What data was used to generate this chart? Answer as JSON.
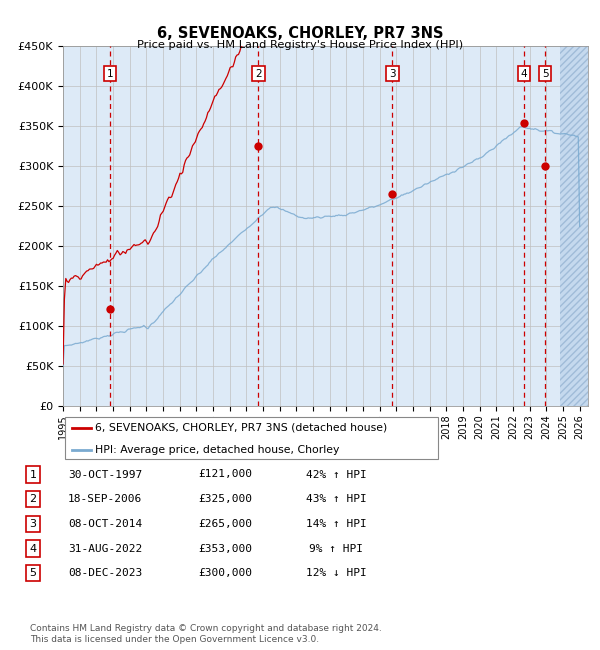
{
  "title": "6, SEVENOAKS, CHORLEY, PR7 3NS",
  "subtitle": "Price paid vs. HM Land Registry's House Price Index (HPI)",
  "ylim": [
    0,
    450000
  ],
  "xlim_start": 1995.0,
  "xlim_end": 2026.5,
  "bg_color": "#ddeaf7",
  "grid_color": "#aaaaaa",
  "red_line_color": "#cc0000",
  "blue_line_color": "#7aaad0",
  "sale_marker_color": "#cc0000",
  "dashed_line_color": "#cc0000",
  "sales": [
    {
      "label": "1",
      "date_num": 1997.83,
      "price": 121000
    },
    {
      "label": "2",
      "date_num": 2006.72,
      "price": 325000
    },
    {
      "label": "3",
      "date_num": 2014.77,
      "price": 265000
    },
    {
      "label": "4",
      "date_num": 2022.67,
      "price": 353000
    },
    {
      "label": "5",
      "date_num": 2023.93,
      "price": 300000
    }
  ],
  "legend_entries": [
    {
      "label": "6, SEVENOAKS, CHORLEY, PR7 3NS (detached house)",
      "color": "#cc0000"
    },
    {
      "label": "HPI: Average price, detached house, Chorley",
      "color": "#7aaad0"
    }
  ],
  "table_rows": [
    {
      "num": "1",
      "date": "30-OCT-1997",
      "price": "£121,000",
      "change": "42% ↑ HPI"
    },
    {
      "num": "2",
      "date": "18-SEP-2006",
      "price": "£325,000",
      "change": "43% ↑ HPI"
    },
    {
      "num": "3",
      "date": "08-OCT-2014",
      "price": "£265,000",
      "change": "14% ↑ HPI"
    },
    {
      "num": "4",
      "date": "31-AUG-2022",
      "price": "£353,000",
      "change": "9% ↑ HPI"
    },
    {
      "num": "5",
      "date": "08-DEC-2023",
      "price": "£300,000",
      "change": "12% ↓ HPI"
    }
  ],
  "footnote": "Contains HM Land Registry data © Crown copyright and database right 2024.\nThis data is licensed under the Open Government Licence v3.0."
}
